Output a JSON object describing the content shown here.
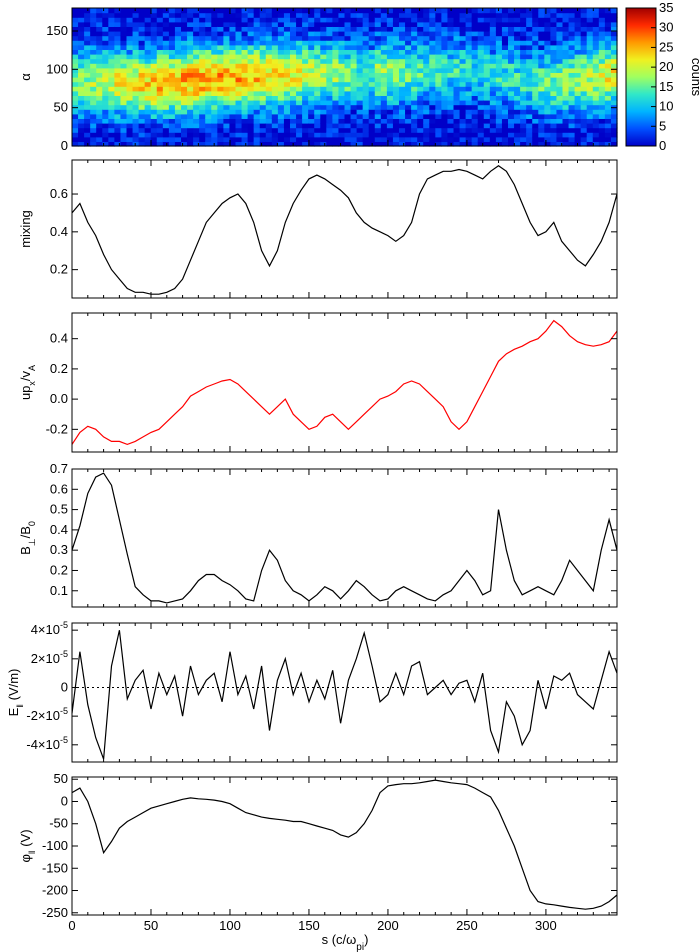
{
  "figure": {
    "xlabel": "s (c/ω",
    "xlabel_sub": "pi",
    "xlabel_close": ")",
    "x_tick_labels": [
      "0",
      "50",
      "100",
      "150",
      "200",
      "250",
      "300"
    ],
    "colorbar": {
      "label": "counts",
      "tick_labels": [
        "0",
        "5",
        "10",
        "15",
        "20",
        "25",
        "30",
        "35"
      ],
      "range": [
        0,
        35
      ],
      "colormap": [
        "#0000c8",
        "#0050ff",
        "#00b4ff",
        "#30e8c8",
        "#a0ff60",
        "#f0f020",
        "#ff9a00",
        "#ff2a00",
        "#a00000"
      ]
    }
  },
  "chart_data": [
    {
      "type": "heatmap",
      "ylabel": "α",
      "xlim": [
        0,
        345
      ],
      "ylim": [
        0,
        180
      ],
      "y_tick_labels": [
        "0",
        "50",
        "100",
        "150"
      ],
      "x_bins": 90,
      "y_bins": 30,
      "value_range": [
        0,
        35
      ],
      "ridge": {
        "s": [
          0,
          50,
          100,
          150,
          200,
          250,
          300,
          345
        ],
        "alpha_center": [
          85,
          80,
          90,
          95,
          95,
          100,
          80,
          95
        ]
      }
    },
    {
      "type": "line",
      "ylabel": "mixing",
      "color": "#000000",
      "xlim": [
        0,
        345
      ],
      "ylim": [
        0.05,
        0.78
      ],
      "y_tick_labels": [
        "0.2",
        "0.4",
        "0.6"
      ],
      "x": [
        0,
        5,
        10,
        15,
        20,
        25,
        30,
        35,
        40,
        45,
        50,
        55,
        60,
        65,
        70,
        75,
        80,
        85,
        90,
        95,
        100,
        105,
        110,
        115,
        120,
        125,
        130,
        135,
        140,
        145,
        150,
        155,
        160,
        165,
        170,
        175,
        180,
        185,
        190,
        195,
        200,
        205,
        210,
        215,
        220,
        225,
        230,
        235,
        240,
        245,
        250,
        255,
        260,
        265,
        270,
        275,
        280,
        285,
        290,
        295,
        300,
        305,
        310,
        315,
        320,
        325,
        330,
        335,
        340,
        345
      ],
      "values": [
        0.5,
        0.55,
        0.45,
        0.38,
        0.28,
        0.2,
        0.15,
        0.1,
        0.08,
        0.08,
        0.07,
        0.07,
        0.08,
        0.1,
        0.15,
        0.25,
        0.35,
        0.45,
        0.5,
        0.55,
        0.58,
        0.6,
        0.55,
        0.45,
        0.3,
        0.22,
        0.3,
        0.45,
        0.55,
        0.62,
        0.68,
        0.7,
        0.68,
        0.65,
        0.62,
        0.58,
        0.5,
        0.45,
        0.42,
        0.4,
        0.38,
        0.35,
        0.38,
        0.45,
        0.6,
        0.68,
        0.7,
        0.72,
        0.72,
        0.73,
        0.72,
        0.7,
        0.68,
        0.72,
        0.75,
        0.72,
        0.65,
        0.55,
        0.45,
        0.38,
        0.4,
        0.45,
        0.35,
        0.3,
        0.25,
        0.22,
        0.28,
        0.35,
        0.45,
        0.6
      ]
    },
    {
      "type": "line",
      "ylabel": "up",
      "ylabel_sub": "x",
      "ylabel_mid": "/v",
      "ylabel_sub2": "A",
      "color": "#ff0000",
      "xlim": [
        0,
        345
      ],
      "ylim": [
        -0.35,
        0.57
      ],
      "y_tick_labels": [
        "-0.2",
        "0.0",
        "0.2",
        "0.4"
      ],
      "x": [
        0,
        5,
        10,
        15,
        20,
        25,
        30,
        35,
        40,
        45,
        50,
        55,
        60,
        65,
        70,
        75,
        80,
        85,
        90,
        95,
        100,
        105,
        110,
        115,
        120,
        125,
        130,
        135,
        140,
        145,
        150,
        155,
        160,
        165,
        170,
        175,
        180,
        185,
        190,
        195,
        200,
        205,
        210,
        215,
        220,
        225,
        230,
        235,
        240,
        245,
        250,
        255,
        260,
        265,
        270,
        275,
        280,
        285,
        290,
        295,
        300,
        305,
        310,
        315,
        320,
        325,
        330,
        335,
        340,
        345
      ],
      "values": [
        -0.3,
        -0.22,
        -0.18,
        -0.2,
        -0.25,
        -0.28,
        -0.28,
        -0.3,
        -0.28,
        -0.25,
        -0.22,
        -0.2,
        -0.15,
        -0.1,
        -0.05,
        0.02,
        0.05,
        0.08,
        0.1,
        0.12,
        0.13,
        0.1,
        0.05,
        0.0,
        -0.05,
        -0.1,
        -0.05,
        0.0,
        -0.1,
        -0.15,
        -0.2,
        -0.18,
        -0.12,
        -0.1,
        -0.15,
        -0.2,
        -0.15,
        -0.1,
        -0.05,
        0.0,
        0.02,
        0.05,
        0.1,
        0.12,
        0.1,
        0.05,
        0.0,
        -0.05,
        -0.15,
        -0.2,
        -0.15,
        -0.05,
        0.05,
        0.15,
        0.25,
        0.3,
        0.33,
        0.35,
        0.38,
        0.4,
        0.45,
        0.52,
        0.48,
        0.42,
        0.38,
        0.36,
        0.35,
        0.36,
        0.38,
        0.45
      ]
    },
    {
      "type": "line",
      "ylabel": "B",
      "ylabel_sub": "⊥",
      "ylabel_mid": "/B",
      "ylabel_sub2": "0",
      "color": "#000000",
      "xlim": [
        0,
        345
      ],
      "ylim": [
        0.02,
        0.7
      ],
      "y_tick_labels": [
        "0.1",
        "0.2",
        "0.3",
        "0.4",
        "0.5",
        "0.6",
        "0.7"
      ],
      "x": [
        0,
        5,
        10,
        15,
        20,
        25,
        30,
        35,
        40,
        45,
        50,
        55,
        60,
        65,
        70,
        75,
        80,
        85,
        90,
        95,
        100,
        105,
        110,
        115,
        120,
        125,
        130,
        135,
        140,
        145,
        150,
        155,
        160,
        165,
        170,
        175,
        180,
        185,
        190,
        195,
        200,
        205,
        210,
        215,
        220,
        225,
        230,
        235,
        240,
        245,
        250,
        255,
        260,
        265,
        270,
        275,
        280,
        285,
        290,
        295,
        300,
        305,
        310,
        315,
        320,
        325,
        330,
        335,
        340,
        345
      ],
      "values": [
        0.3,
        0.42,
        0.58,
        0.66,
        0.68,
        0.62,
        0.45,
        0.28,
        0.12,
        0.08,
        0.05,
        0.05,
        0.04,
        0.05,
        0.06,
        0.1,
        0.15,
        0.18,
        0.18,
        0.15,
        0.13,
        0.1,
        0.06,
        0.05,
        0.2,
        0.3,
        0.25,
        0.15,
        0.1,
        0.08,
        0.05,
        0.08,
        0.12,
        0.1,
        0.06,
        0.1,
        0.15,
        0.12,
        0.08,
        0.05,
        0.06,
        0.1,
        0.12,
        0.1,
        0.08,
        0.06,
        0.05,
        0.08,
        0.1,
        0.15,
        0.2,
        0.15,
        0.08,
        0.1,
        0.5,
        0.3,
        0.15,
        0.08,
        0.1,
        0.12,
        0.1,
        0.08,
        0.15,
        0.25,
        0.2,
        0.15,
        0.1,
        0.3,
        0.45,
        0.3
      ]
    },
    {
      "type": "line",
      "ylabel": "E",
      "ylabel_sub": "‖",
      "ylabel_tail": " (V/m)",
      "color": "#000000",
      "zero_line": true,
      "xlim": [
        0,
        345
      ],
      "ylim": [
        -5.2e-05,
        4.5e-05
      ],
      "y_tick_labels": [
        "-4×10",
        "-2×10",
        "0",
        "2×10",
        "4×10"
      ],
      "y_tick_exponent": "-5",
      "x": [
        0,
        5,
        10,
        15,
        20,
        25,
        30,
        35,
        40,
        45,
        50,
        55,
        60,
        65,
        70,
        75,
        80,
        85,
        90,
        95,
        100,
        105,
        110,
        115,
        120,
        125,
        130,
        135,
        140,
        145,
        150,
        155,
        160,
        165,
        170,
        175,
        180,
        185,
        190,
        195,
        200,
        205,
        210,
        215,
        220,
        225,
        230,
        235,
        240,
        245,
        250,
        255,
        260,
        265,
        270,
        275,
        280,
        285,
        290,
        295,
        300,
        305,
        310,
        315,
        320,
        325,
        330,
        335,
        340,
        345
      ],
      "values": [
        -1.8e-05,
        2.5e-05,
        -1.2e-05,
        -3.5e-05,
        -5e-05,
        1.5e-05,
        4e-05,
        -8e-06,
        5e-06,
        1.2e-05,
        -1.5e-05,
        1e-05,
        -5e-06,
        8e-06,
        -2e-05,
        1.5e-05,
        -5e-06,
        5e-06,
        1e-05,
        -1e-05,
        2.5e-05,
        -5e-06,
        8e-06,
        -1.5e-05,
        1.5e-05,
        -3e-05,
        5e-06,
        2e-05,
        -5e-06,
        1e-05,
        -1e-05,
        5e-06,
        -8e-06,
        1.2e-05,
        -2.5e-05,
        5e-06,
        2e-05,
        3.8e-05,
        1.5e-05,
        -1e-05,
        -5e-06,
        1e-05,
        -5e-06,
        1.5e-05,
        1.8e-05,
        -5e-06,
        0.0,
        5e-06,
        -5e-06,
        3e-06,
        5e-06,
        -1e-05,
        1e-05,
        -3e-05,
        -4.5e-05,
        -1e-05,
        -2e-05,
        -4e-05,
        -3e-05,
        5e-06,
        -1.5e-05,
        8e-06,
        5e-06,
        1e-05,
        -5e-06,
        -1e-05,
        -1.5e-05,
        5e-06,
        2.5e-05,
        1e-05
      ]
    },
    {
      "type": "line",
      "ylabel": "φ",
      "ylabel_sub": "‖",
      "ylabel_tail": " (V)",
      "color": "#000000",
      "xlim": [
        0,
        345
      ],
      "ylim": [
        -255,
        55
      ],
      "y_tick_labels": [
        "-250",
        "-200",
        "-150",
        "-100",
        "-50",
        "0",
        "50"
      ],
      "x": [
        0,
        5,
        10,
        15,
        20,
        25,
        30,
        35,
        40,
        45,
        50,
        55,
        60,
        65,
        70,
        75,
        80,
        85,
        90,
        95,
        100,
        105,
        110,
        115,
        120,
        125,
        130,
        135,
        140,
        145,
        150,
        155,
        160,
        165,
        170,
        175,
        180,
        185,
        190,
        195,
        200,
        205,
        210,
        215,
        220,
        225,
        230,
        235,
        240,
        245,
        250,
        255,
        260,
        265,
        270,
        275,
        280,
        285,
        290,
        295,
        300,
        305,
        310,
        315,
        320,
        325,
        330,
        335,
        340,
        345
      ],
      "values": [
        20,
        30,
        0,
        -50,
        -115,
        -90,
        -60,
        -45,
        -35,
        -25,
        -15,
        -10,
        -5,
        0,
        5,
        8,
        6,
        5,
        3,
        0,
        -5,
        -15,
        -25,
        -30,
        -35,
        -38,
        -40,
        -42,
        -45,
        -45,
        -50,
        -55,
        -60,
        -65,
        -75,
        -80,
        -70,
        -50,
        -20,
        20,
        35,
        38,
        40,
        40,
        42,
        45,
        48,
        45,
        42,
        40,
        38,
        30,
        20,
        10,
        -20,
        -60,
        -100,
        -150,
        -200,
        -225,
        -230,
        -232,
        -235,
        -238,
        -240,
        -242,
        -240,
        -235,
        -225,
        -210
      ]
    }
  ]
}
